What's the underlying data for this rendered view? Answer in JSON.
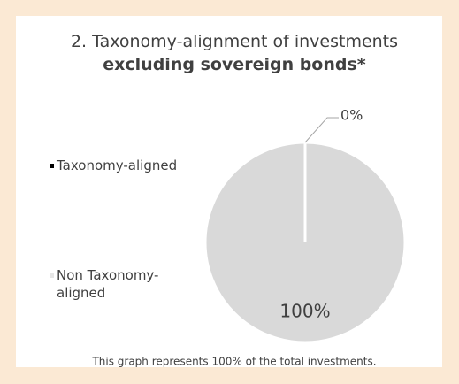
{
  "chart_data": {
    "type": "pie",
    "title": "2. Taxonomy-alignment of investments",
    "title_emphasis": "excluding sovereign bonds*",
    "categories": [
      "Taxonomy-aligned",
      "Non Taxonomy-aligned"
    ],
    "values": [
      0,
      100
    ],
    "value_labels": [
      "0%",
      "100%"
    ],
    "colors": [
      "#000000",
      "#d9d9d9"
    ],
    "legend": "left",
    "footnote": "This graph represents 100% of the total investments."
  }
}
